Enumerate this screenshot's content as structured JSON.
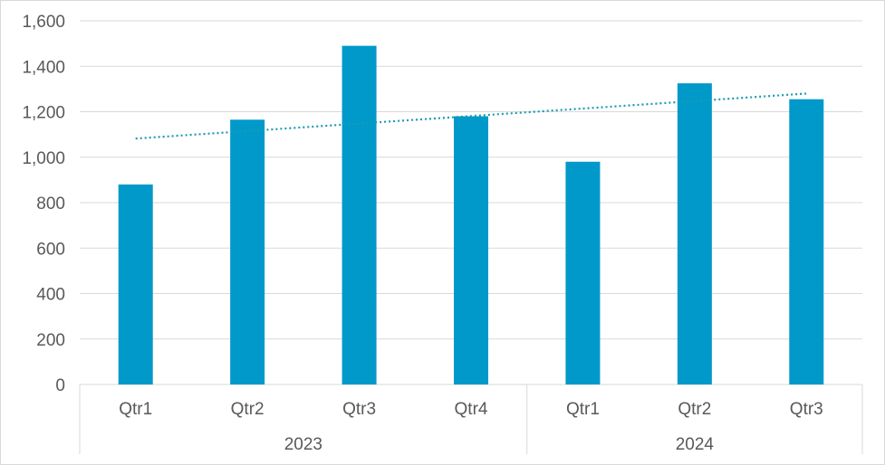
{
  "chart_data": {
    "type": "bar",
    "groups": [
      {
        "label": "2023",
        "categories": [
          "Qtr1",
          "Qtr2",
          "Qtr3",
          "Qtr4"
        ]
      },
      {
        "label": "2024",
        "categories": [
          "Qtr1",
          "Qtr2",
          "Qtr3"
        ]
      }
    ],
    "categories": [
      "Qtr1",
      "Qtr2",
      "Qtr3",
      "Qtr4",
      "Qtr1",
      "Qtr2",
      "Qtr3"
    ],
    "values": [
      880,
      1165,
      1490,
      1180,
      980,
      1325,
      1255
    ],
    "ylim": [
      0,
      1600
    ],
    "yticks": [
      "0",
      "200",
      "400",
      "600",
      "800",
      "1,000",
      "1,200",
      "1,400",
      "1,600"
    ],
    "grid": true,
    "trendline": {
      "type": "linear",
      "style": "dotted",
      "start": 1082,
      "end": 1280
    },
    "colors": {
      "bar": "#0099c9",
      "trendline": "#1a9bb0",
      "grid": "#d9d9d9",
      "text": "#595959"
    }
  }
}
